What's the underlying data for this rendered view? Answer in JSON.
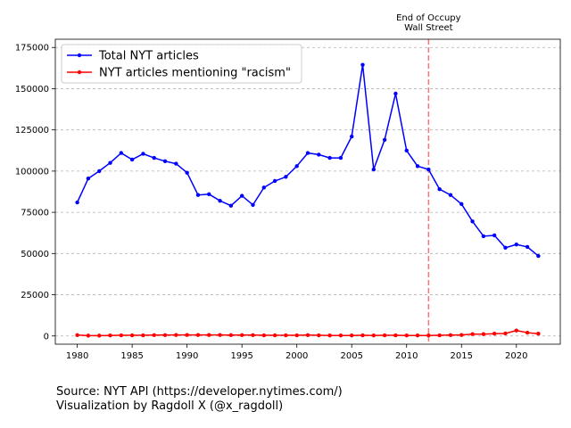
{
  "chart_data": {
    "type": "line",
    "title": "",
    "xlabel": "",
    "ylabel": "",
    "x": [
      1980,
      1981,
      1982,
      1983,
      1984,
      1985,
      1986,
      1987,
      1988,
      1989,
      1990,
      1991,
      1992,
      1993,
      1994,
      1995,
      1996,
      1997,
      1998,
      1999,
      2000,
      2001,
      2002,
      2003,
      2004,
      2005,
      2006,
      2007,
      2008,
      2009,
      2010,
      2011,
      2012,
      2013,
      2014,
      2015,
      2016,
      2017,
      2018,
      2019,
      2020,
      2021,
      2022
    ],
    "series": [
      {
        "name": "Total NYT articles",
        "color": "#0000ff",
        "values": [
          81000,
          95500,
          100000,
          105000,
          111000,
          107000,
          110500,
          108000,
          106000,
          104500,
          99000,
          85500,
          86000,
          82000,
          79000,
          85000,
          79500,
          90000,
          94000,
          96500,
          103000,
          111000,
          110000,
          108000,
          108000,
          121000,
          164500,
          101000,
          119000,
          147000,
          112500,
          103000,
          101000,
          89000,
          85500,
          80000,
          69500,
          60500,
          61000,
          53500,
          55500,
          54000,
          48500
        ]
      },
      {
        "name": "NYT articles mentioning \"racism\"",
        "color": "#ff0000",
        "values": [
          500,
          200,
          200,
          300,
          400,
          400,
          400,
          500,
          500,
          600,
          600,
          600,
          600,
          600,
          500,
          500,
          500,
          400,
          400,
          400,
          400,
          500,
          400,
          300,
          300,
          300,
          400,
          300,
          400,
          400,
          300,
          300,
          300,
          400,
          500,
          600,
          1100,
          1100,
          1400,
          1500,
          3300,
          2000,
          1400
        ]
      }
    ],
    "xlim": [
      1978,
      2024
    ],
    "ylim": [
      -5000,
      180000
    ],
    "xticks": [
      1980,
      1985,
      1990,
      1995,
      2000,
      2005,
      2010,
      2015,
      2020
    ],
    "yticks": [
      0,
      25000,
      50000,
      75000,
      100000,
      125000,
      150000,
      175000
    ],
    "grid": "horizontal dashed",
    "legend_position": "top-left",
    "vline": {
      "x": 2012,
      "color": "#ff0000",
      "label_lines": [
        "End of Occupy",
        "Wall Street"
      ]
    }
  },
  "footer": {
    "line1": "Source: NYT API (https://developer.nytimes.com/)",
    "line2": "Visualization by Ragdoll X (@x_ragdoll)"
  }
}
